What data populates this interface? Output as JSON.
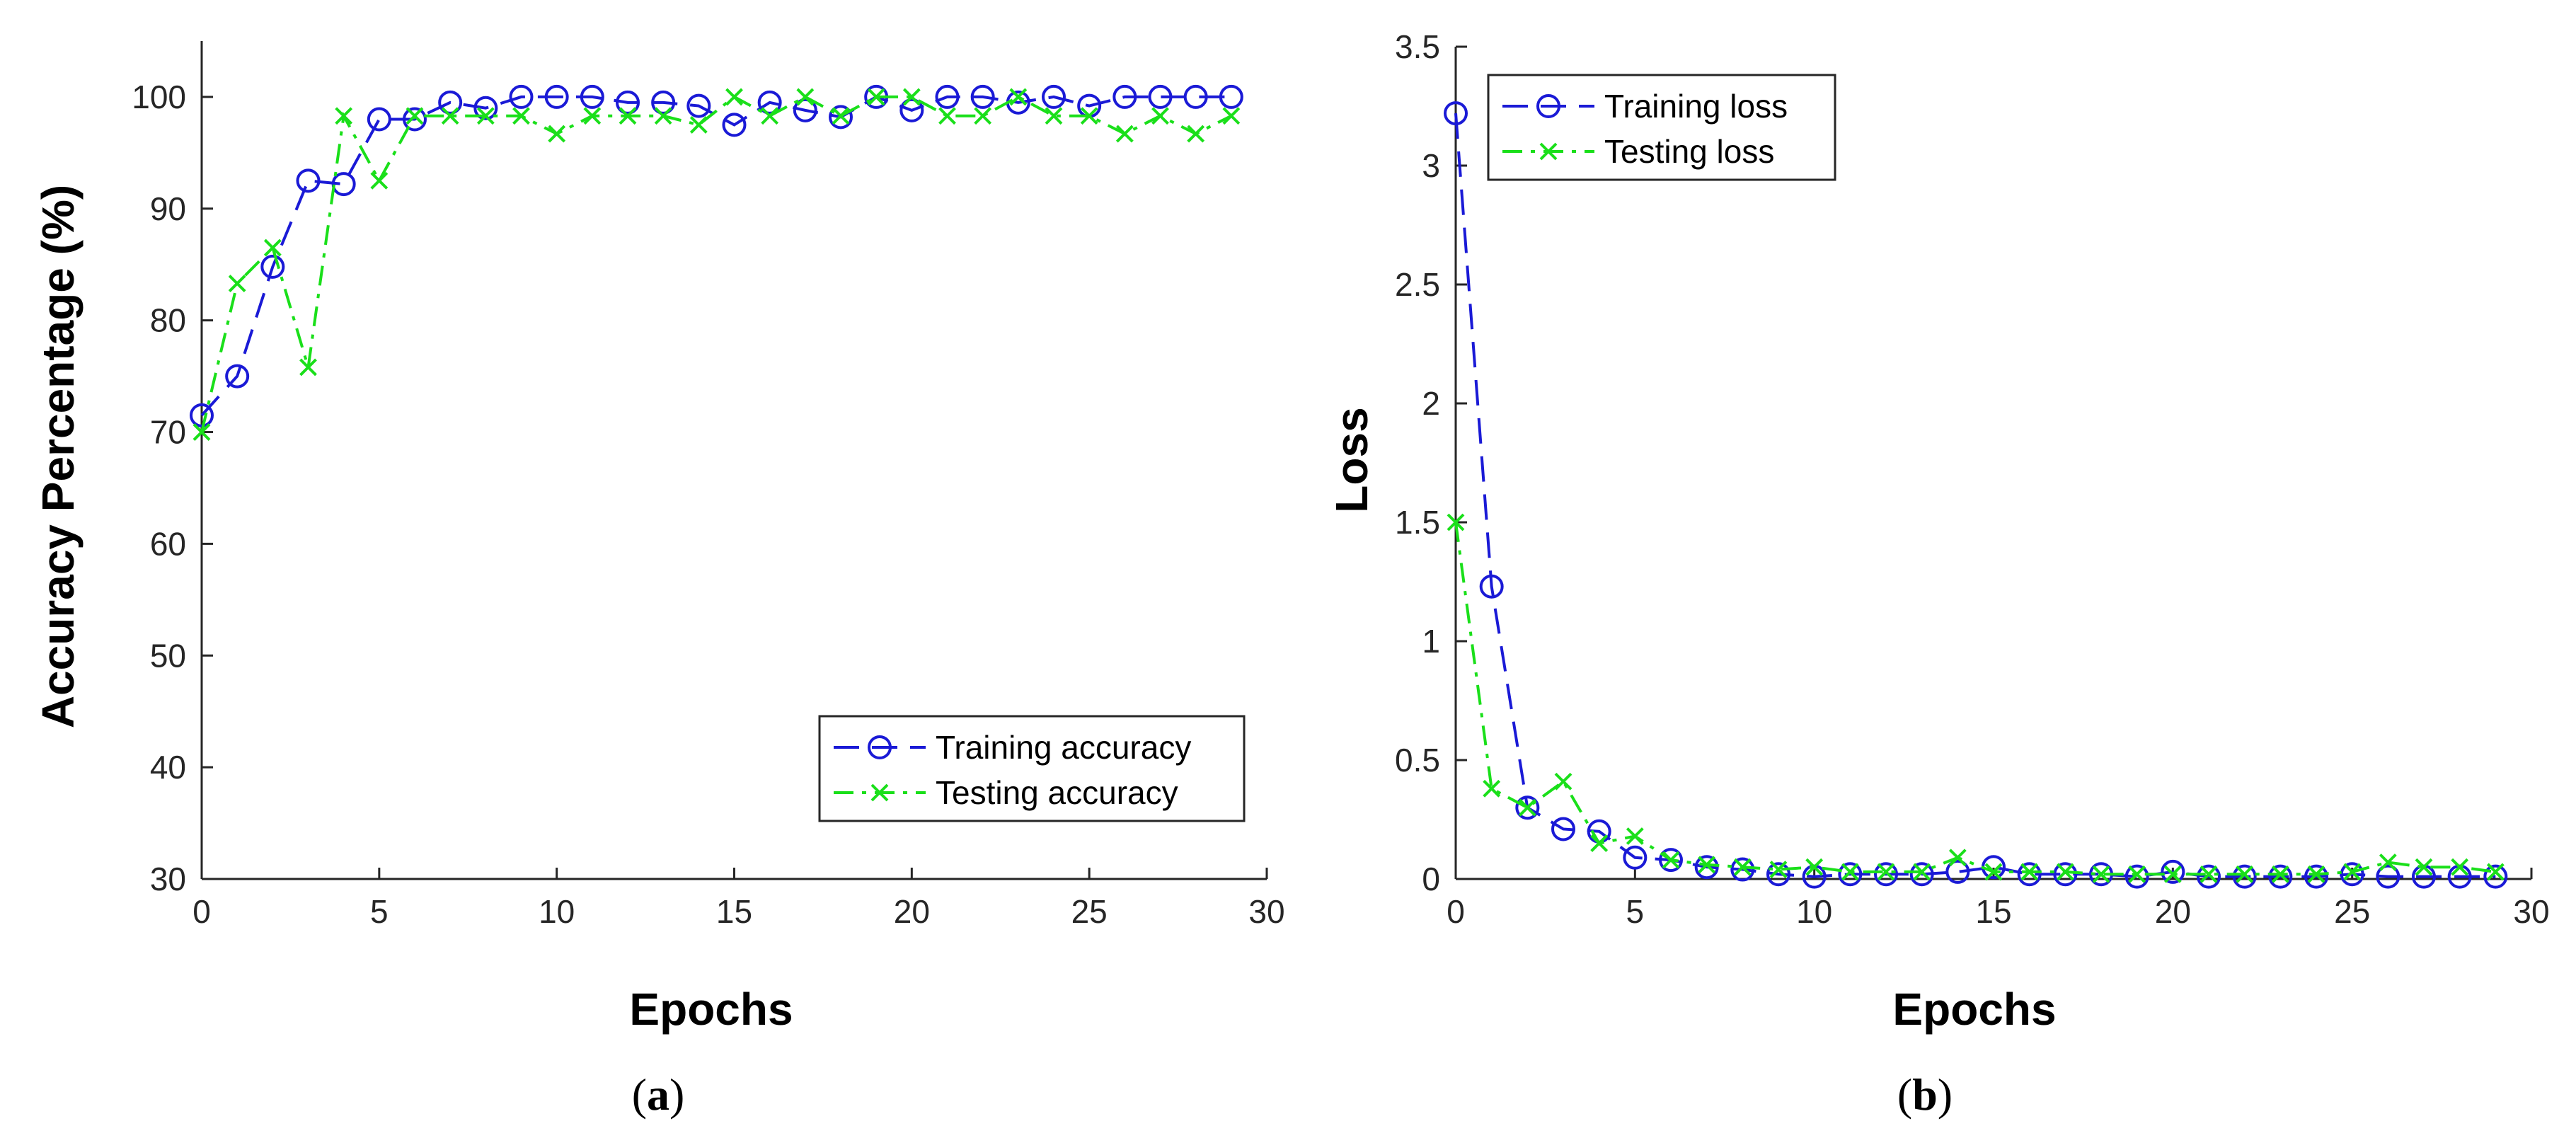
{
  "colors": {
    "training": "#1a1ad6",
    "testing": "#1adf1a",
    "axis": "#262626"
  },
  "chart_data": [
    {
      "type": "line",
      "caption_letter": "a",
      "xlabel": "Epochs",
      "ylabel": "Accuracy Percentage (%)",
      "xlim": [
        0,
        30
      ],
      "ylim": [
        30,
        105
      ],
      "xticks": [
        0,
        5,
        10,
        15,
        20,
        25,
        30
      ],
      "yticks": [
        30,
        40,
        50,
        60,
        70,
        80,
        90,
        100
      ],
      "grid": false,
      "legend_position": "bottom-right",
      "x": [
        0,
        1,
        2,
        3,
        4,
        5,
        6,
        7,
        8,
        9,
        10,
        11,
        12,
        13,
        14,
        15,
        16,
        17,
        18,
        19,
        20,
        21,
        22,
        23,
        24,
        25,
        26,
        27,
        28,
        29
      ],
      "series": [
        {
          "name": "Training accuracy",
          "marker": "circle",
          "style": "dashed",
          "values": [
            71.5,
            75,
            84.8,
            92.5,
            92.2,
            98,
            98,
            99.5,
            99,
            100,
            100,
            100,
            99.5,
            99.5,
            99.2,
            97.5,
            99.5,
            98.8,
            98.2,
            100,
            98.8,
            100,
            100,
            99.5,
            100,
            99.2,
            100,
            100,
            100,
            100
          ]
        },
        {
          "name": "Testing accuracy",
          "marker": "x",
          "style": "dashdot",
          "values": [
            70,
            83.3,
            86.5,
            75.8,
            98.3,
            92.5,
            98.3,
            98.3,
            98.3,
            98.3,
            96.7,
            98.3,
            98.3,
            98.3,
            97.5,
            100,
            98.3,
            100,
            98.3,
            100,
            100,
            98.3,
            98.3,
            100,
            98.3,
            98.3,
            96.7,
            98.3,
            96.7,
            98.3
          ]
        }
      ]
    },
    {
      "type": "line",
      "caption_letter": "b",
      "xlabel": "Epochs",
      "ylabel": "Loss",
      "xlim": [
        0,
        30
      ],
      "ylim": [
        0,
        3.5
      ],
      "xticks": [
        0,
        5,
        10,
        15,
        20,
        25,
        30
      ],
      "yticks": [
        0,
        0.5,
        1,
        1.5,
        2,
        2.5,
        3,
        3.5
      ],
      "grid": false,
      "legend_position": "top-left",
      "x": [
        0,
        1,
        2,
        3,
        4,
        5,
        6,
        7,
        8,
        9,
        10,
        11,
        12,
        13,
        14,
        15,
        16,
        17,
        18,
        19,
        20,
        21,
        22,
        23,
        24,
        25,
        26,
        27,
        28,
        29
      ],
      "series": [
        {
          "name": "Training loss",
          "marker": "circle",
          "style": "dashed",
          "values": [
            3.22,
            1.23,
            0.3,
            0.21,
            0.2,
            0.09,
            0.08,
            0.05,
            0.04,
            0.02,
            0.01,
            0.02,
            0.02,
            0.02,
            0.03,
            0.05,
            0.02,
            0.02,
            0.02,
            0.01,
            0.03,
            0.01,
            0.01,
            0.01,
            0.01,
            0.02,
            0.01,
            0.01,
            0.01,
            0.01
          ]
        },
        {
          "name": "Testing loss",
          "marker": "x",
          "style": "dashdot",
          "values": [
            1.5,
            0.38,
            0.3,
            0.41,
            0.15,
            0.18,
            0.08,
            0.06,
            0.05,
            0.04,
            0.05,
            0.03,
            0.03,
            0.03,
            0.09,
            0.03,
            0.03,
            0.03,
            0.02,
            0.02,
            0.02,
            0.02,
            0.02,
            0.02,
            0.02,
            0.03,
            0.07,
            0.05,
            0.05,
            0.03
          ]
        }
      ]
    }
  ]
}
